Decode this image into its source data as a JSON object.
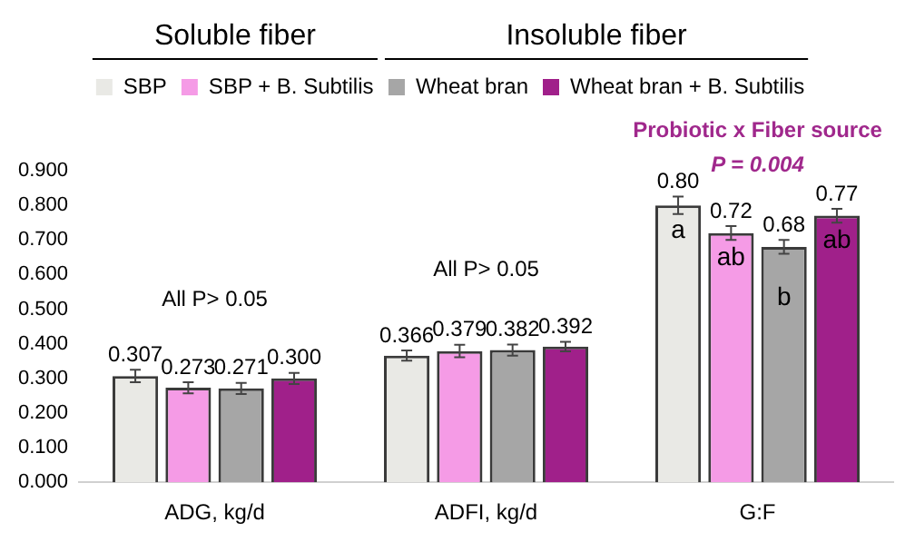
{
  "chart_data": {
    "type": "bar",
    "categories": [
      "ADG, kg/d",
      "ADFI, kg/d",
      "G:F"
    ],
    "series": [
      {
        "name": "SBP",
        "color": "#e9e9e5",
        "values": [
          0.307,
          0.366,
          0.8
        ],
        "errors": [
          0.018,
          0.015,
          0.025
        ],
        "value_labels": [
          "0.307",
          "0.366",
          "0.80"
        ]
      },
      {
        "name": "SBP + B. Subtilis",
        "color": "#f59be6",
        "values": [
          0.273,
          0.379,
          0.72
        ],
        "errors": [
          0.016,
          0.018,
          0.02
        ],
        "value_labels": [
          "0.273",
          "0.379",
          "0.72"
        ]
      },
      {
        "name": "Wheat bran",
        "color": "#a6a6a6",
        "values": [
          0.271,
          0.382,
          0.68
        ],
        "errors": [
          0.016,
          0.016,
          0.02
        ],
        "value_labels": [
          "0.271",
          "0.382",
          "0.68"
        ]
      },
      {
        "name": "Wheat bran + B. Subtilis",
        "color": "#a0208a",
        "values": [
          0.3,
          0.392,
          0.77
        ],
        "errors": [
          0.016,
          0.014,
          0.02
        ],
        "value_labels": [
          "0.300",
          "0.392",
          "0.77"
        ]
      }
    ],
    "ylim": [
      0,
      0.9
    ],
    "yticks": [
      {
        "value": 0,
        "label": "0.000"
      },
      {
        "value": 0.1,
        "label": "0.100"
      },
      {
        "value": 0.2,
        "label": "0.200"
      },
      {
        "value": 0.3,
        "label": "0.300"
      },
      {
        "value": 0.4,
        "label": "0.400"
      },
      {
        "value": 0.5,
        "label": "0.500"
      },
      {
        "value": 0.6,
        "label": "0.600"
      },
      {
        "value": 0.7,
        "label": "0.700"
      },
      {
        "value": 0.8,
        "label": "0.800"
      },
      {
        "value": 0.9,
        "label": "0.900"
      }
    ],
    "grid": false,
    "legend": "top",
    "annotations": [
      "Soluble fiber",
      "Insoluble fiber",
      "Probiotic x Fiber source",
      "P = 0.004",
      "All P> 0.05",
      "All P> 0.05",
      "a",
      "ab",
      "b",
      "ab"
    ]
  }
}
